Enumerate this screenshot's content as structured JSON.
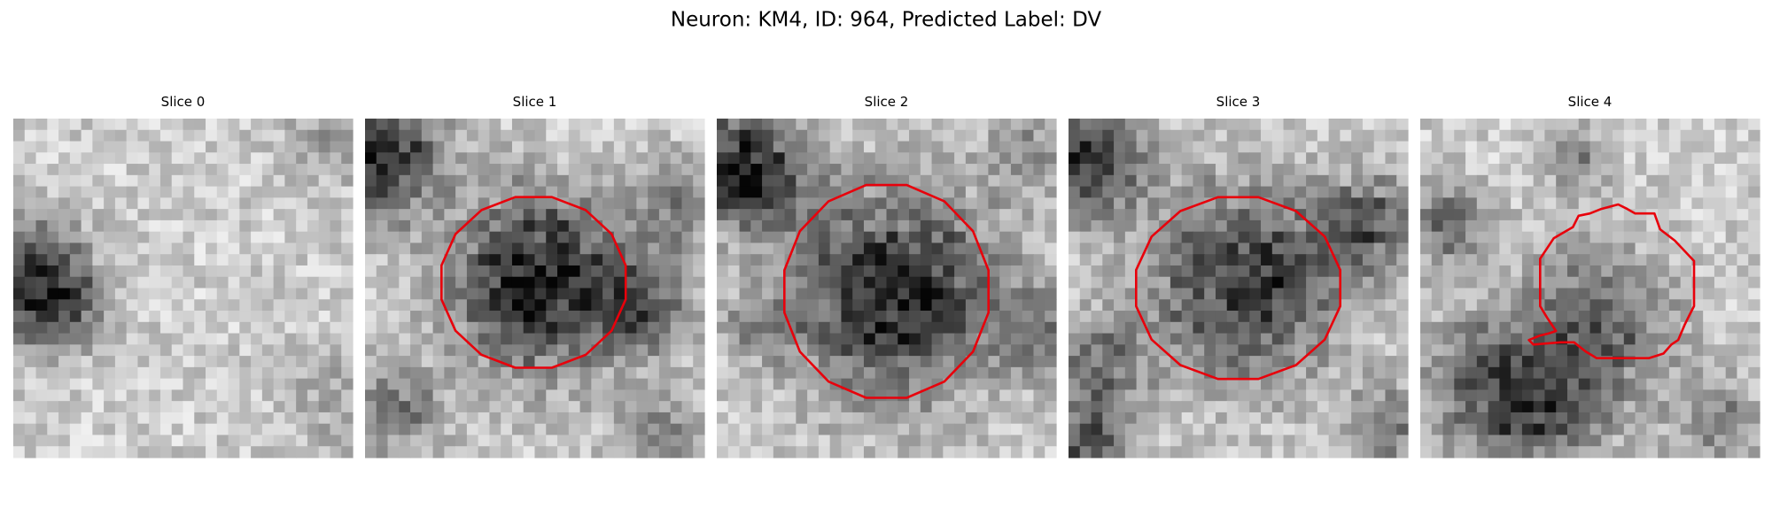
{
  "title": "Neuron: KM4, ID: 964, Predicted Label: DV",
  "panels": [
    {
      "title": "Slice 0"
    },
    {
      "title": "Slice 1"
    },
    {
      "title": "Slice 2"
    },
    {
      "title": "Slice 3"
    },
    {
      "title": "Slice 4"
    }
  ]
}
